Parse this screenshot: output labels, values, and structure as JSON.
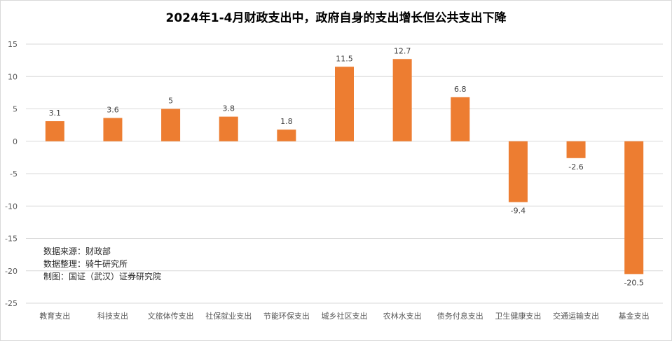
{
  "chart_data": {
    "type": "bar",
    "title": "2024年1-4月财政支出中，政府自身的支出增长但公共支出下降",
    "categories": [
      "教育支出",
      "科技支出",
      "文旅体传支出",
      "社保就业支出",
      "节能环保支出",
      "城乡社区支出",
      "农林水支出",
      "债务付息支出",
      "卫生健康支出",
      "交通运输支出",
      "基金支出"
    ],
    "values": [
      3.1,
      3.6,
      5,
      3.8,
      1.8,
      11.5,
      12.7,
      6.8,
      -9.4,
      -2.6,
      -20.5
    ],
    "data_labels": [
      "3.1",
      "3.6",
      "5",
      "3.8",
      "1.8",
      "11.5",
      "12.7",
      "6.8",
      "-9.4",
      "-2.6",
      "-20.5"
    ],
    "ylim": [
      -25,
      15
    ],
    "yticks": [
      15,
      10,
      5,
      0,
      -5,
      -10,
      -15,
      -20,
      -25
    ],
    "ytick_labels": [
      "15",
      "10",
      "5",
      "0",
      "-5",
      "-10",
      "-15",
      "-20",
      "-25"
    ],
    "bar_color": "#ED7D31",
    "grid": true,
    "xlabel": "",
    "ylabel": ""
  },
  "notes": {
    "source": "数据来源：财政部",
    "compiled": "数据整理：骑牛研究所",
    "made_by": "制图：国证（武汉）证券研究院"
  }
}
